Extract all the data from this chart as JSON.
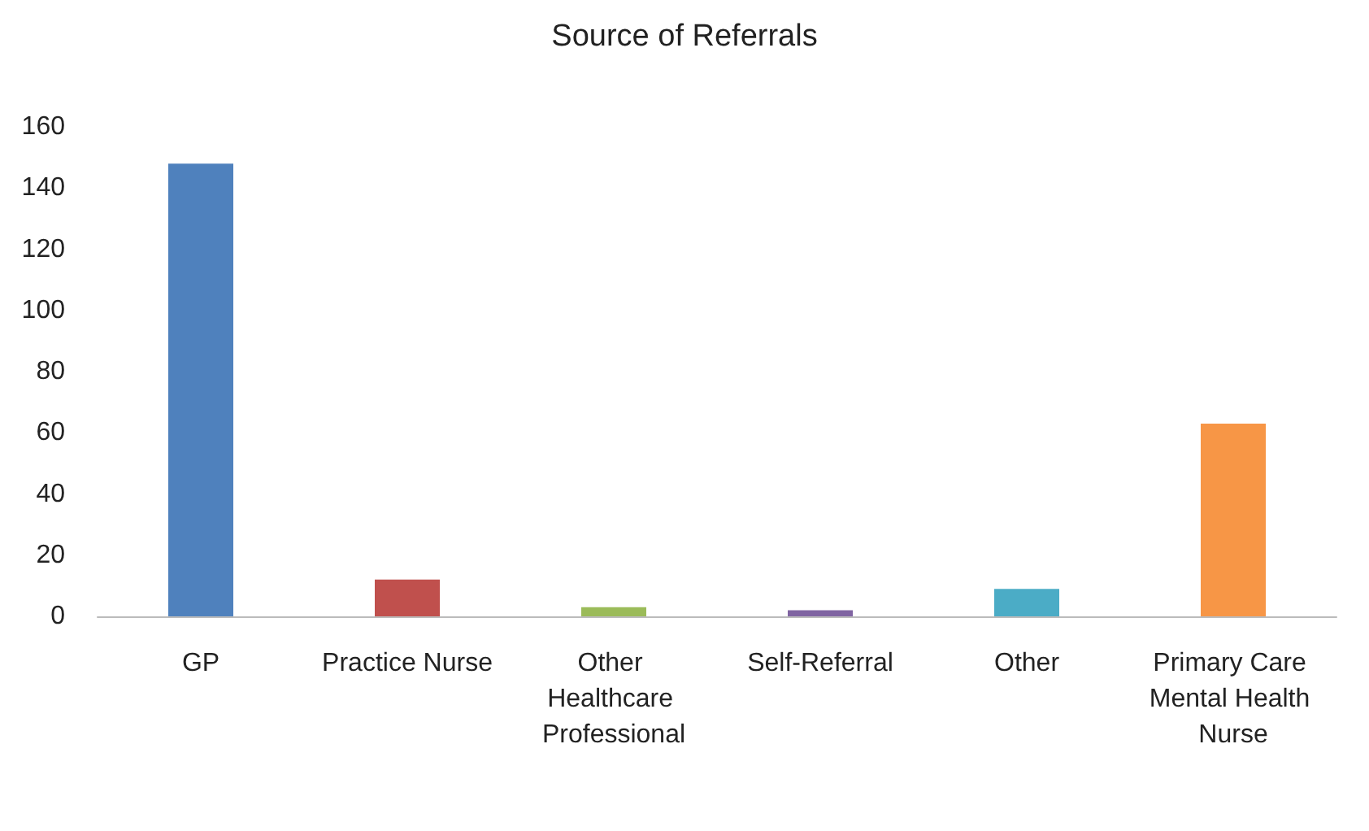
{
  "chart_data": {
    "type": "bar",
    "title": "Source of Referrals",
    "categories": [
      "GP",
      "Practice Nurse",
      "Other Healthcare Professional",
      "Self-Referral",
      "Other",
      "Primary Care Mental Health Nurse"
    ],
    "values": [
      148,
      12,
      3,
      2,
      9,
      63
    ],
    "colors": [
      "#4f81bd",
      "#c0504d",
      "#9bbb59",
      "#8064a2",
      "#4bacc6",
      "#f79646"
    ],
    "ylim": [
      0,
      160
    ],
    "yticks": [
      0,
      20,
      40,
      60,
      80,
      100,
      120,
      140,
      160
    ],
    "grid": false
  }
}
